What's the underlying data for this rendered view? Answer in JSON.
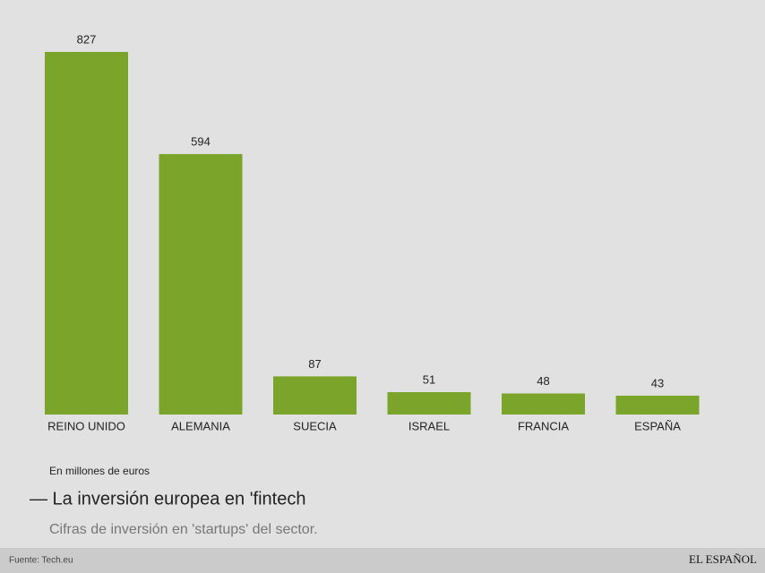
{
  "chart_data": {
    "type": "bar",
    "title": "— La inversión europea en 'fintech",
    "subtitle": "Cifras de inversión en 'startups' del sector.",
    "note": "En millones de euros",
    "source": "Fuente: Tech.eu",
    "brand": "EL ESPAÑOL",
    "categories": [
      "REINO UNIDO",
      "ALEMANIA",
      "SUECIA",
      "ISRAEL",
      "FRANCIA",
      "ESPAÑA"
    ],
    "values": [
      827,
      594,
      87,
      51,
      48,
      43
    ],
    "color": "#7ba52a"
  }
}
